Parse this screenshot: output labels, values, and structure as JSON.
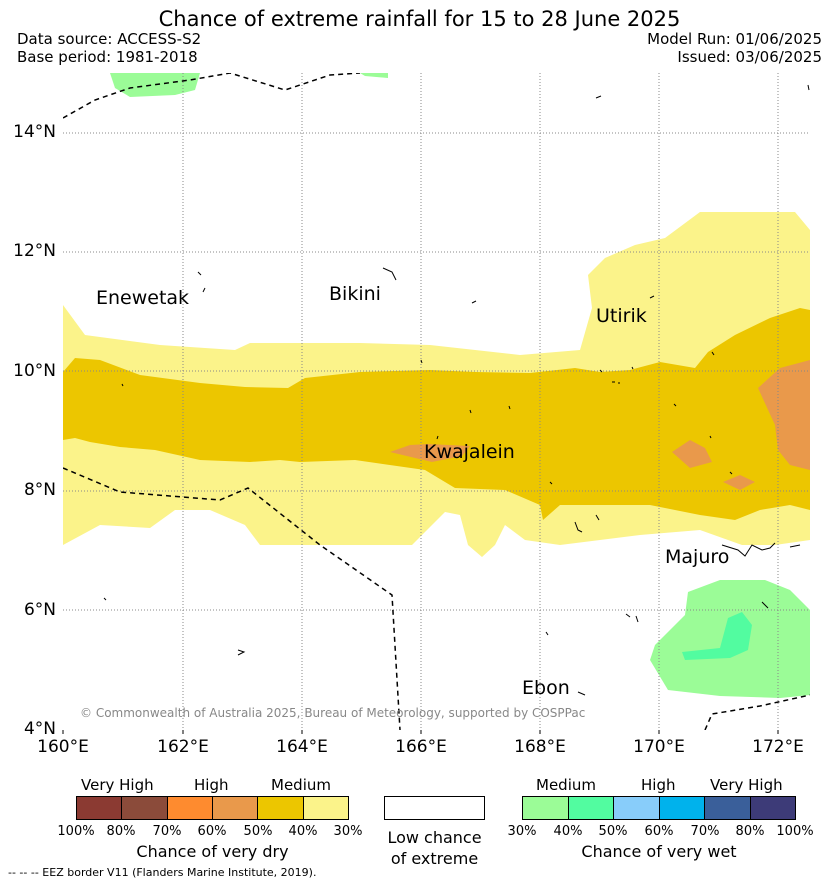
{
  "header": {
    "title": "Chance of extreme rainfall for 15 to 28 June 2025",
    "data_source": "Data source: ACCESS-S2",
    "base_period": "Base period: 1981-2018",
    "model_run": "Model Run: 01/06/2025",
    "issued": "Issued: 03/06/2025"
  },
  "map": {
    "lat_labels": [
      "14°N",
      "12°N",
      "10°N",
      "8°N",
      "6°N",
      "4°N"
    ],
    "lon_labels": [
      "160°E",
      "162°E",
      "164°E",
      "166°E",
      "168°E",
      "170°E",
      "172°E"
    ],
    "places": {
      "enewetak": "Enewetak",
      "bikini": "Bikini",
      "utirik": "Utirik",
      "kwajalein": "Kwajalein",
      "majuro": "Majuro",
      "ebon": "Ebon"
    },
    "copyright": "© Commonwealth of Australia 2025, Bureau of Meteorology, supported by COSPPac",
    "colors": {
      "dry_30_40": "#fbf38a",
      "dry_40_50": "#ecc600",
      "dry_50_60": "#e9994b",
      "dry_60_70": "#fe8b2f",
      "dry_70_80": "#8b4b3a",
      "dry_80_100": "#8b3a32",
      "wet_30_40": "#9bfc97",
      "wet_40_50": "#52fca0",
      "wet_50_60": "#88cdfa",
      "wet_60_70": "#00b2ec",
      "wet_70_80": "#3a5f9a",
      "wet_80_100": "#3d3b78"
    }
  },
  "legend": {
    "dry": {
      "very_high": "Very High",
      "high": "High",
      "medium": "Medium",
      "ticks": [
        "100%",
        "80%",
        "70%",
        "60%",
        "50%",
        "40%",
        "30%"
      ],
      "caption": "Chance of very dry"
    },
    "low": {
      "caption_line1": "Low chance",
      "caption_line2": "of extreme"
    },
    "wet": {
      "medium": "Medium",
      "high": "High",
      "very_high": "Very High",
      "ticks": [
        "30%",
        "40%",
        "50%",
        "60%",
        "70%",
        "80%",
        "100%"
      ],
      "caption": "Chance of very wet"
    },
    "eez_note": "--  --  -- EEZ border V11 (Flanders Marine Institute, 2019)."
  }
}
